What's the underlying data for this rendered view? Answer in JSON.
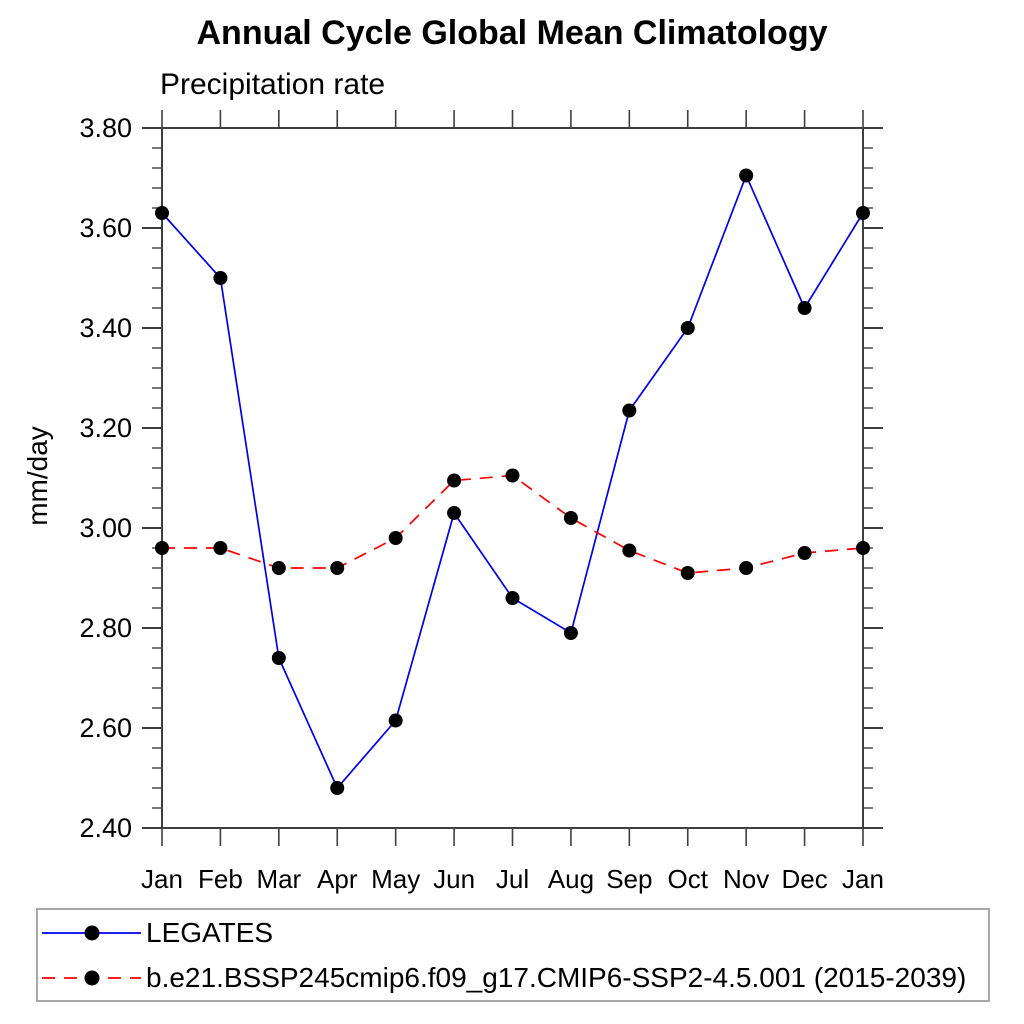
{
  "chart_data": {
    "type": "line",
    "title": "Annual Cycle Global Mean Climatology",
    "subtitle": "Precipitation rate",
    "ylabel": "mm/day",
    "xlabel": "",
    "ylim": [
      2.4,
      3.8
    ],
    "ytick_labels": [
      "2.40",
      "2.60",
      "2.80",
      "3.00",
      "3.20",
      "3.40",
      "3.60",
      "3.80"
    ],
    "yminor_step": 0.04,
    "grid": false,
    "legend_position": "bottom",
    "axis_color": "#3f3f3f",
    "text_color": "#000000",
    "categories": [
      "Jan",
      "Feb",
      "Mar",
      "Apr",
      "May",
      "Jun",
      "Jul",
      "Aug",
      "Sep",
      "Oct",
      "Nov",
      "Dec",
      "Jan"
    ],
    "series": [
      {
        "name": "LEGATES",
        "color": "#0000ee",
        "line_style": "solid",
        "marker": "circle",
        "marker_color": "#000000",
        "values": [
          3.63,
          3.5,
          2.74,
          2.48,
          2.615,
          3.03,
          2.86,
          2.79,
          3.235,
          3.4,
          3.705,
          3.44,
          3.63
        ]
      },
      {
        "name": "b.e21.BSSP245cmip6.f09_g17.CMIP6-SSP2-4.5.001 (2015-2039)",
        "color": "#ff0000",
        "line_style": "dashed",
        "marker": "circle",
        "marker_color": "#000000",
        "values": [
          2.96,
          2.96,
          2.92,
          2.92,
          2.98,
          3.095,
          3.105,
          3.02,
          2.955,
          2.91,
          2.92,
          2.95,
          2.96
        ]
      }
    ]
  }
}
